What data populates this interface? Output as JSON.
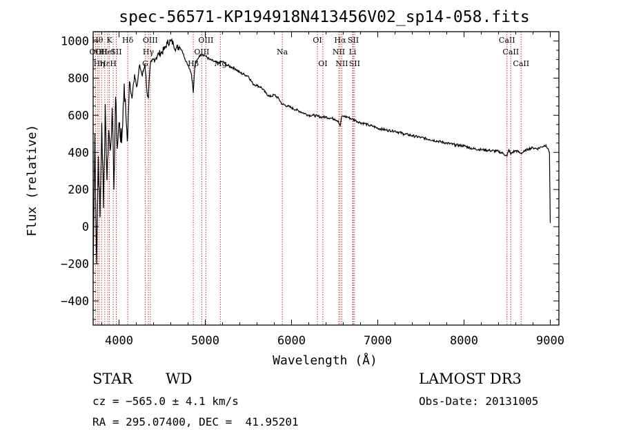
{
  "chart_data": {
    "type": "line",
    "title": "spec-56571-KP194918N413456V02_sp14-058.fits",
    "xlabel": "Wavelength (Å)",
    "ylabel": "Flux (relative)",
    "xlim": [
      3700,
      9100
    ],
    "ylim": [
      -530,
      1050
    ],
    "xticks": [
      4000,
      5000,
      6000,
      7000,
      8000,
      9000
    ],
    "yticks": [
      -400,
      -200,
      0,
      200,
      400,
      600,
      800,
      1000
    ],
    "grid": false,
    "series": [
      {
        "name": "spectrum",
        "x": [
          3700,
          3720,
          3740,
          3760,
          3780,
          3800,
          3820,
          3840,
          3860,
          3880,
          3900,
          3920,
          3940,
          3960,
          3980,
          4000,
          4030,
          4060,
          4080,
          4101,
          4120,
          4150,
          4180,
          4210,
          4240,
          4270,
          4300,
          4330,
          4340,
          4360,
          4380,
          4400,
          4430,
          4460,
          4500,
          4530,
          4560,
          4600,
          4630,
          4660,
          4700,
          4730,
          4760,
          4780,
          4800,
          4820,
          4840,
          4850,
          4861,
          4870,
          4880,
          4900,
          4930,
          4960,
          5000,
          5050,
          5100,
          5150,
          5200,
          5250,
          5300,
          5350,
          5400,
          5450,
          5500,
          5550,
          5600,
          5650,
          5700,
          5750,
          5800,
          5850,
          5890,
          5950,
          6000,
          6050,
          6100,
          6150,
          6200,
          6250,
          6300,
          6350,
          6400,
          6450,
          6500,
          6540,
          6563,
          6580,
          6600,
          6650,
          6700,
          6750,
          6800,
          6850,
          6900,
          6950,
          7000,
          7100,
          7200,
          7300,
          7400,
          7500,
          7600,
          7700,
          7800,
          7900,
          8000,
          8100,
          8200,
          8300,
          8400,
          8450,
          8498,
          8520,
          8542,
          8560,
          8600,
          8662,
          8700,
          8750,
          8800,
          8850,
          8900,
          8950,
          8970,
          8990,
          9000
        ],
        "values": [
          -250,
          500,
          -200,
          380,
          50,
          560,
          100,
          660,
          250,
          520,
          410,
          640,
          200,
          700,
          420,
          560,
          450,
          770,
          600,
          480,
          780,
          690,
          820,
          760,
          870,
          810,
          880,
          700,
          690,
          860,
          890,
          900,
          910,
          930,
          940,
          960,
          990,
          1000,
          985,
          960,
          970,
          950,
          910,
          890,
          870,
          850,
          820,
          780,
          720,
          800,
          870,
          890,
          920,
          930,
          920,
          900,
          890,
          880,
          890,
          870,
          860,
          850,
          830,
          820,
          810,
          770,
          760,
          750,
          720,
          700,
          710,
          690,
          660,
          650,
          640,
          630,
          620,
          610,
          600,
          600,
          595,
          590,
          590,
          585,
          580,
          570,
          540,
          590,
          595,
          590,
          580,
          570,
          560,
          555,
          545,
          540,
          530,
          520,
          515,
          500,
          490,
          480,
          470,
          460,
          450,
          440,
          435,
          420,
          415,
          410,
          405,
          395,
          380,
          415,
          390,
          400,
          410,
          395,
          405,
          420,
          425,
          420,
          430,
          440,
          420,
          400,
          20
        ]
      }
    ],
    "spectral_lines": [
      {
        "wl": 3727,
        "label": "OII",
        "row": 2
      },
      {
        "wl": 3750,
        "label": "Hθ",
        "row": 1
      },
      {
        "wl": 3770,
        "label": "Hη",
        "row": 3
      },
      {
        "wl": 3797,
        "label": "OII",
        "row": 2
      },
      {
        "wl": 3835,
        "label": "Hε",
        "row": 3
      },
      {
        "wl": 3869,
        "label": "HeI",
        "row": 2
      },
      {
        "wl": 3889,
        "label": "K",
        "row": 1
      },
      {
        "wl": 3933,
        "label": "H",
        "row": 3
      },
      {
        "wl": 3968,
        "label": "SII",
        "row": 2
      },
      {
        "wl": 4101,
        "label": "Hδ",
        "row": 1
      },
      {
        "wl": 4304,
        "label": "G",
        "row": 3
      },
      {
        "wl": 4340,
        "label": "Hγ",
        "row": 2
      },
      {
        "wl": 4363,
        "label": "OIII",
        "row": 1
      },
      {
        "wl": 4861,
        "label": "Hβ",
        "row": 3
      },
      {
        "wl": 4959,
        "label": "OIII",
        "row": 2
      },
      {
        "wl": 5007,
        "label": "OIII",
        "row": 1
      },
      {
        "wl": 5175,
        "label": "Mg",
        "row": 3
      },
      {
        "wl": 5893,
        "label": "Na",
        "row": 2
      },
      {
        "wl": 6300,
        "label": "OI",
        "row": 1
      },
      {
        "wl": 6363,
        "label": "OI",
        "row": 3
      },
      {
        "wl": 6548,
        "label": "NII",
        "row": 2
      },
      {
        "wl": 6563,
        "label": "Hα",
        "row": 1
      },
      {
        "wl": 6583,
        "label": "NII",
        "row": 3
      },
      {
        "wl": 6708,
        "label": "Li",
        "row": 2
      },
      {
        "wl": 6716,
        "label": "SII",
        "row": 1
      },
      {
        "wl": 6731,
        "label": "SII",
        "row": 3
      },
      {
        "wl": 8498,
        "label": "CaII",
        "row": 1
      },
      {
        "wl": 8542,
        "label": "CaII",
        "row": 2
      },
      {
        "wl": 8662,
        "label": "CaII",
        "row": 3
      }
    ]
  },
  "info": {
    "object_class": "STAR",
    "subclass": "WD",
    "survey": "LAMOST DR3",
    "cz": "cz = −565.0 ± 4.1 km/s",
    "obs_date": "Obs-Date: 20131005",
    "coords": "RA = 295.07400, DEC =  41.95201"
  },
  "colors": {
    "spectrum": "#000000",
    "line_marker": "#b22222",
    "axes": "#000000"
  }
}
